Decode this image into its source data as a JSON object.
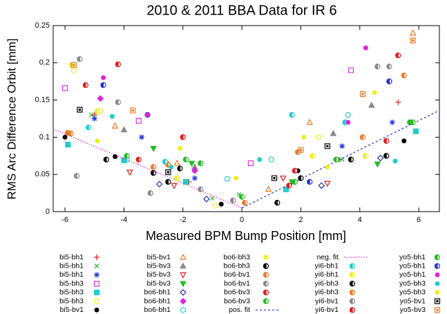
{
  "chart_data": {
    "type": "scatter",
    "title": "2010 & 2011 BBA Data for IR 6",
    "x_label": "Measured BPM Bump Position [mm]",
    "y_label": "RMS Arc Difference Orbit [mm]",
    "xlim": [
      -6.4,
      6.7
    ],
    "ylim": [
      0,
      0.25
    ],
    "xticks": [
      -6,
      -4,
      -2,
      0,
      2,
      4,
      6
    ],
    "yticks": [
      0,
      0.05,
      0.1,
      0.15,
      0.2,
      0.25
    ],
    "legend": "bottom",
    "series": [
      {
        "name": "bi5-bh1",
        "color": "#e41a1c",
        "marker": "plus",
        "x": [
          -5.0,
          -1.8,
          3.3,
          5.3
        ],
        "values": [
          0.13,
          0.04,
          0.07,
          0.147
        ]
      },
      {
        "name": "bi5-bh1",
        "color": "#22bb22",
        "marker": "cross",
        "x": [
          -5.1,
          -1.0,
          -0.1,
          3.4
        ],
        "values": [
          0.13,
          0.018,
          0.023,
          0.07
        ]
      },
      {
        "name": "bi5-bh1",
        "color": "#2233dd",
        "marker": "star",
        "x": [
          -5.0,
          -3.4,
          -1.6,
          3.4,
          5.1
        ],
        "values": [
          0.125,
          0.1,
          0.045,
          0.088,
          0.12
        ]
      },
      {
        "name": "bi5-bh3",
        "color": "#dd33dd",
        "marker": "square-open",
        "x": [
          -6.0,
          -3.5,
          0.3,
          3.7
        ],
        "values": [
          0.166,
          0.122,
          0.065,
          0.19
        ]
      },
      {
        "name": "bi5-bh3",
        "color": "#22cccc",
        "marker": "square-filled",
        "x": [
          -5.9,
          -4.0,
          -1.9,
          1.5,
          5.9
        ],
        "values": [
          0.09,
          0.069,
          0.04,
          0.03,
          0.108
        ]
      },
      {
        "name": "bi5-bh3",
        "color": "#eeee22",
        "marker": "circle-open",
        "x": [
          -5.7,
          -4.8,
          -0.9,
          2.6
        ],
        "values": [
          0.19,
          0.135,
          0.008,
          0.1
        ]
      },
      {
        "name": "bi5-bv1",
        "color": "#000000",
        "marker": "circle-filled",
        "x": [
          -6.0,
          -4.3,
          -0.7,
          1.9,
          5.5
        ],
        "values": [
          0.1,
          0.074,
          0.01,
          0.055,
          0.095
        ]
      },
      {
        "name": "bi5-bv1",
        "color": "#ee7722",
        "marker": "triangle-open",
        "x": [
          -4.3,
          -2.2,
          0.9,
          2.3,
          5.8
        ],
        "values": [
          0.115,
          0.065,
          0.03,
          0.12,
          0.24
        ]
      },
      {
        "name": "bi5-bv3",
        "color": "#888888",
        "marker": "triangle-filled",
        "x": [
          -4.0,
          -1.6,
          3.1,
          4.4
        ],
        "values": [
          0.11,
          0.06,
          0.105,
          0.143
        ]
      },
      {
        "name": "bi5-bv3",
        "color": "#e41a1c",
        "marker": "triangle-down-open",
        "x": [
          -3.8,
          -2.3,
          1.4,
          2.9
        ],
        "values": [
          0.053,
          0.035,
          0.045,
          0.038
        ]
      },
      {
        "name": "bi5-bv3",
        "color": "#22bb22",
        "marker": "triangle-down-filled",
        "x": [
          -3.0,
          -1.7,
          1.7,
          4.6
        ],
        "values": [
          0.085,
          0.065,
          0.04,
          0.064
        ]
      },
      {
        "name": "bo6-bh1",
        "color": "#2233aa",
        "marker": "diamond-open",
        "x": [
          -2.8,
          -1.2,
          2.7,
          4.7
        ],
        "values": [
          0.037,
          0.017,
          0.035,
          0.072
        ]
      },
      {
        "name": "bo6-bh1",
        "color": "#dd22dd",
        "marker": "diamond-filled",
        "x": [
          -4.8,
          -1.6,
          1.8,
          5.0
        ],
        "values": [
          0.152,
          0.055,
          0.04,
          0.175
        ]
      },
      {
        "name": "bo6-bh1",
        "color": "#22cccc",
        "marker": "circle-open",
        "x": [
          -3.9,
          -0.5,
          1.0,
          3.6
        ],
        "values": [
          0.07,
          0.044,
          0.07,
          0.13
        ]
      },
      {
        "name": "bo6-bh3",
        "color": "#eeee22",
        "marker": "circle-filled",
        "x": [
          -4.9,
          -2.5,
          -0.2,
          2.1
        ],
        "values": [
          0.095,
          0.065,
          0.045,
          0.1
        ]
      },
      {
        "name": "bo6-bh3",
        "color": "#000000",
        "marker": "circle-half",
        "x": [
          -3.0,
          -2.1,
          1.2,
          3.7
        ],
        "values": [
          0.052,
          0.058,
          0.012,
          0.07
        ]
      },
      {
        "name": "bo6-bv1",
        "color": "#ee7722",
        "marker": "circle-half",
        "x": [
          -5.9,
          -2.5,
          0.1,
          4.1
        ],
        "values": [
          0.106,
          0.063,
          0.012,
          0.1
        ]
      },
      {
        "name": "bo6-bv1",
        "color": "#888888",
        "marker": "circle-half",
        "x": [
          -5.5,
          -3.1,
          -0.3,
          5.0
        ],
        "values": [
          0.205,
          0.025,
          0.015,
          0.195
        ]
      },
      {
        "name": "bo6-bv3",
        "color": "#e41a1c",
        "marker": "circle-half",
        "x": [
          -4.2,
          -2.0,
          1.8,
          5.3
        ],
        "values": [
          0.198,
          0.1,
          0.055,
          0.21
        ]
      },
      {
        "name": "bo6-bv3",
        "color": "#22bb22",
        "marker": "circle-half",
        "x": [
          -3.9,
          -1.9,
          0.0,
          5.7
        ],
        "values": [
          0.075,
          0.07,
          0.02,
          0.12
        ]
      },
      {
        "name": "pos. fit",
        "color": "#2233cc",
        "marker": "line",
        "style": "dashed",
        "x": [
          0,
          6.7
        ],
        "values": [
          0.005,
          0.136
        ]
      },
      {
        "name": "neg. fit",
        "color": "#dd22dd",
        "marker": "line",
        "style": "dotted",
        "x": [
          -6.4,
          0
        ],
        "values": [
          0.111,
          0.005
        ]
      },
      {
        "name": "yi6-bh1",
        "color": "#22cccc",
        "marker": "circle-half",
        "x": [
          -5.2,
          -2.6,
          1.7,
          3.5
        ],
        "values": [
          0.113,
          0.067,
          0.13,
          0.12
        ]
      },
      {
        "name": "yi6-bh1",
        "color": "#eeee22",
        "marker": "circle-half",
        "x": [
          -4.9,
          -2.2,
          2.4,
          4.2
        ],
        "values": [
          0.135,
          0.045,
          0.075,
          0.075
        ]
      },
      {
        "name": "yi6-bh3",
        "color": "#000000",
        "marker": "circle-half",
        "x": [
          -4.6,
          -2.5,
          2.0,
          4.9
        ],
        "values": [
          0.07,
          0.04,
          0.045,
          0.075
        ]
      },
      {
        "name": "yi6-bh3",
        "color": "#ee7722",
        "marker": "circle-half",
        "x": [
          -5.8,
          -3.0,
          1.9,
          5.5
        ],
        "values": [
          0.105,
          0.06,
          0.08,
          0.183
        ]
      },
      {
        "name": "yi6-bv1",
        "color": "#888888",
        "marker": "circle-half",
        "x": [
          -5.6,
          -4.2,
          -1.4,
          4.6
        ],
        "values": [
          0.048,
          0.147,
          0.03,
          0.195
        ]
      },
      {
        "name": "yi6-bv1",
        "color": "#e41a1c",
        "marker": "circle-half",
        "x": [
          -5.3,
          -3.5,
          1.6,
          4.9
        ],
        "values": [
          0.17,
          0.07,
          0.035,
          0.095
        ]
      },
      {
        "name": "yo5-bh1",
        "color": "#22bb22",
        "marker": "circle-half",
        "x": [
          -1.4,
          1.8,
          3.2,
          5.8
        ],
        "values": [
          0.065,
          0.04,
          0.07,
          0.12
        ]
      },
      {
        "name": "yo5-bh1",
        "color": "#2233cc",
        "marker": "circle-half",
        "x": [
          -4.7,
          -3.2,
          2.3,
          5.0
        ],
        "values": [
          0.17,
          0.13,
          0.04,
          0.175
        ]
      },
      {
        "name": "yo5-bh1",
        "color": "#dd22dd",
        "marker": "circle-filled",
        "x": [
          -4.7,
          -3.2,
          3.6,
          4.2
        ],
        "values": [
          0.18,
          0.13,
          0.12,
          0.22
        ]
      },
      {
        "name": "yo5-bh3",
        "color": "#22cccc",
        "marker": "circle-filled",
        "x": [
          -4.4,
          -2.4,
          0.6,
          5.2
        ],
        "values": [
          0.128,
          0.06,
          0.07,
          0.068
        ]
      },
      {
        "name": "yo5-bh3",
        "color": "#eeee22",
        "marker": "circle-filled",
        "x": [
          -5.8,
          -2.1,
          2.9,
          4.5
        ],
        "values": [
          0.197,
          0.085,
          0.06,
          0.16
        ]
      },
      {
        "name": "yo5-bv1",
        "color": "#000000",
        "marker": "square-dot",
        "x": [
          -5.5,
          -2.5,
          1.1,
          2.9
        ],
        "values": [
          0.137,
          0.053,
          0.045,
          0.088
        ]
      },
      {
        "name": "yo5-bv3",
        "color": "#ee7722",
        "marker": "square-dot",
        "x": [
          -5.7,
          -3.7,
          2.0,
          4.1,
          5.8
        ],
        "values": [
          0.197,
          0.136,
          0.083,
          0.158,
          0.23
        ]
      }
    ]
  }
}
